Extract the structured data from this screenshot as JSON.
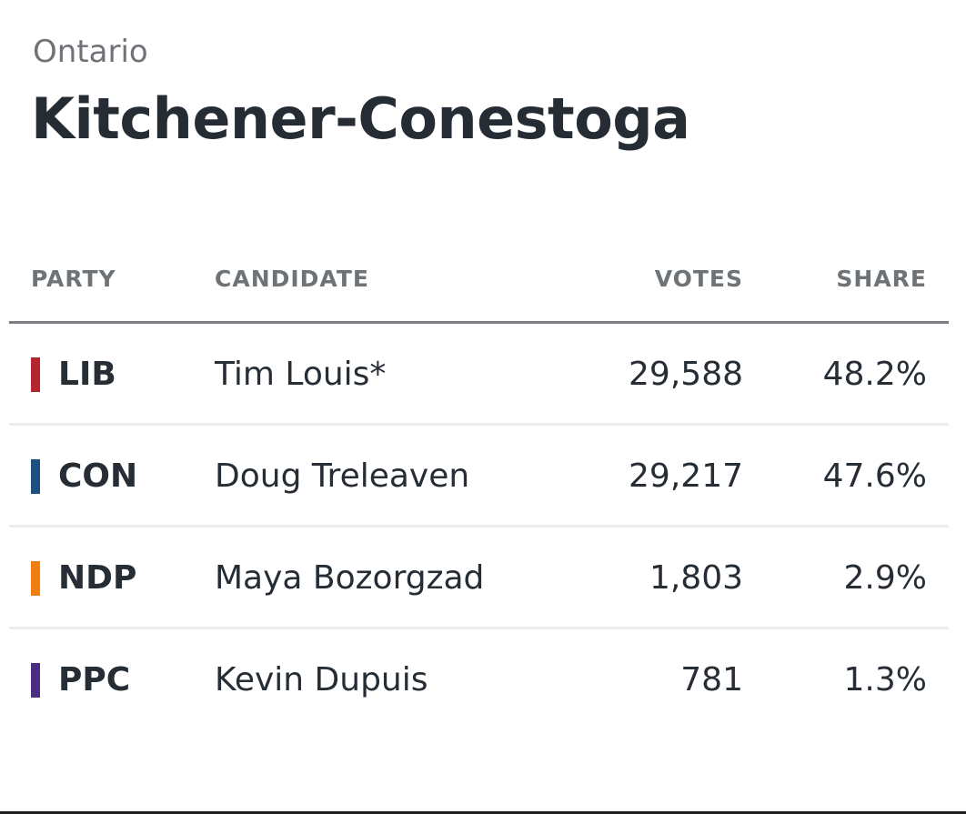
{
  "header": {
    "region": "Ontario",
    "riding": "Kitchener-Conestoga"
  },
  "table": {
    "columns": {
      "party": "PARTY",
      "candidate": "CANDIDATE",
      "votes": "VOTES",
      "share": "SHARE"
    },
    "rows": [
      {
        "party": "LIB",
        "color": "#b3262d",
        "candidate": "Tim Louis*",
        "votes": "29,588",
        "share": "48.2%"
      },
      {
        "party": "CON",
        "color": "#1f4f80",
        "candidate": "Doug Treleaven",
        "votes": "29,217",
        "share": "47.6%"
      },
      {
        "party": "NDP",
        "color": "#f07d10",
        "candidate": "Maya Bozorgzad",
        "votes": "1,803",
        "share": "2.9%"
      },
      {
        "party": "PPC",
        "color": "#4b2e83",
        "candidate": "Kevin Dupuis",
        "votes": "781",
        "share": "1.3%"
      }
    ]
  }
}
